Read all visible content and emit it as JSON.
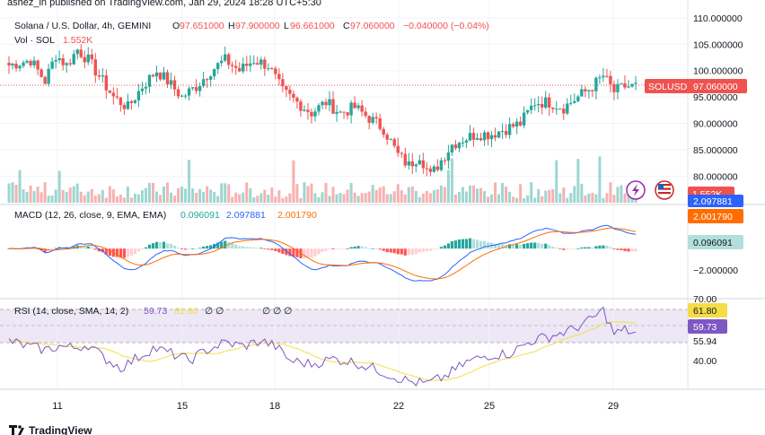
{
  "header": {
    "published": "ashez_in published on TradingView.com, Jan 29, 2024 18:28 UTC+5:30",
    "symbol": "Solana / U.S. Dollar, 4h, GEMINI",
    "o_label": "O",
    "o_value": "97.651000",
    "h_label": "H",
    "h_value": "97.900000",
    "l_label": "L",
    "l_value": "96.661000",
    "c_label": "C",
    "c_value": "97.060000",
    "change": "−0.040000 (−0.04%)",
    "vol_label": "Vol · SOL",
    "vol_value": "1.552K"
  },
  "price_axis": {
    "ticks": [
      "110.000000",
      "105.000000",
      "100.000000",
      "95.000000",
      "90.000000",
      "85.000000",
      "80.000000"
    ],
    "last_label": "SOLUSD",
    "last_value": "97.060000",
    "vol_badge": "1.552K"
  },
  "macd": {
    "label": "MACD (12, 26, close, 9, EMA, EMA)",
    "v_hist": "0.096091",
    "v_macd": "2.097881",
    "v_signal": "2.001790",
    "axis_ticks": [
      "−2.000000"
    ],
    "badge_hidden": "2.097881",
    "badge_signal": "2.001790",
    "badge_hist": "0.096091"
  },
  "rsi": {
    "label": "RSI (14, close, SMA, 14, 2)",
    "v_rsi": "59.73",
    "v_ma": "61.80",
    "v_rest": "∅  ∅",
    "v_rest2": "∅  ∅  ∅",
    "axis_ticks": [
      "70.00",
      "55.94",
      "40.00"
    ],
    "badge_ma": "61.80",
    "badge_rsi": "59.73"
  },
  "time_axis": {
    "ticks": [
      "11",
      "15",
      "18",
      "22",
      "25",
      "29"
    ]
  },
  "footer": {
    "brand": "TradingView"
  },
  "colors": {
    "up": "#26a69a",
    "down": "#ef5350",
    "macd_line": "#2962ff",
    "signal_line": "#ff6d00",
    "rsi_line": "#7e57c2",
    "rsi_ma": "#f5dd45",
    "rsi_band": "#ede7f6"
  },
  "chart_data": {
    "type": "line",
    "title": "Solana / U.S. Dollar, 4h, GEMINI",
    "price_range": [
      77,
      111
    ],
    "anchors_close": [
      [
        0,
        101
      ],
      [
        6,
        102
      ],
      [
        10,
        98
      ],
      [
        13,
        103
      ],
      [
        16,
        101
      ],
      [
        19,
        104
      ],
      [
        22,
        102
      ],
      [
        25,
        99
      ],
      [
        29,
        95
      ],
      [
        33,
        93
      ],
      [
        37,
        97
      ],
      [
        41,
        100
      ],
      [
        44,
        98
      ],
      [
        48,
        95
      ],
      [
        52,
        97
      ],
      [
        56,
        100
      ],
      [
        60,
        102
      ],
      [
        64,
        100
      ],
      [
        68,
        102
      ],
      [
        72,
        101
      ],
      [
        76,
        96
      ],
      [
        80,
        94
      ],
      [
        84,
        92
      ],
      [
        88,
        94
      ],
      [
        92,
        92
      ],
      [
        96,
        93
      ],
      [
        100,
        91
      ],
      [
        104,
        89
      ],
      [
        108,
        84
      ],
      [
        111,
        82
      ],
      [
        114,
        84
      ],
      [
        117,
        80
      ],
      [
        120,
        83
      ],
      [
        123,
        86
      ],
      [
        126,
        87
      ],
      [
        130,
        88
      ],
      [
        134,
        88
      ],
      [
        138,
        89
      ],
      [
        142,
        90
      ],
      [
        146,
        94
      ],
      [
        150,
        94
      ],
      [
        154,
        93
      ],
      [
        158,
        95
      ],
      [
        162,
        97
      ],
      [
        165,
        99
      ],
      [
        168,
        96
      ],
      [
        171,
        97
      ],
      [
        174,
        97
      ]
    ],
    "rsi_range": [
      30,
      78
    ],
    "rsi_anchors": [
      [
        0,
        56
      ],
      [
        5,
        53
      ],
      [
        10,
        51
      ],
      [
        14,
        53
      ],
      [
        18,
        52
      ],
      [
        22,
        54
      ],
      [
        26,
        47
      ],
      [
        31,
        41
      ],
      [
        36,
        47
      ],
      [
        40,
        52
      ],
      [
        45,
        49
      ],
      [
        50,
        45
      ],
      [
        55,
        51
      ],
      [
        60,
        55
      ],
      [
        65,
        53
      ],
      [
        70,
        56
      ],
      [
        74,
        53
      ],
      [
        78,
        45
      ],
      [
        84,
        43
      ],
      [
        90,
        46
      ],
      [
        96,
        44
      ],
      [
        102,
        40
      ],
      [
        107,
        36
      ],
      [
        112,
        33
      ],
      [
        116,
        32
      ],
      [
        121,
        36
      ],
      [
        127,
        44
      ],
      [
        133,
        48
      ],
      [
        139,
        49
      ],
      [
        145,
        56
      ],
      [
        151,
        59
      ],
      [
        156,
        62
      ],
      [
        161,
        67
      ],
      [
        165,
        73
      ],
      [
        168,
        60
      ],
      [
        171,
        62
      ],
      [
        174,
        60
      ]
    ],
    "macd_range": [
      -4.2,
      3.2
    ]
  }
}
